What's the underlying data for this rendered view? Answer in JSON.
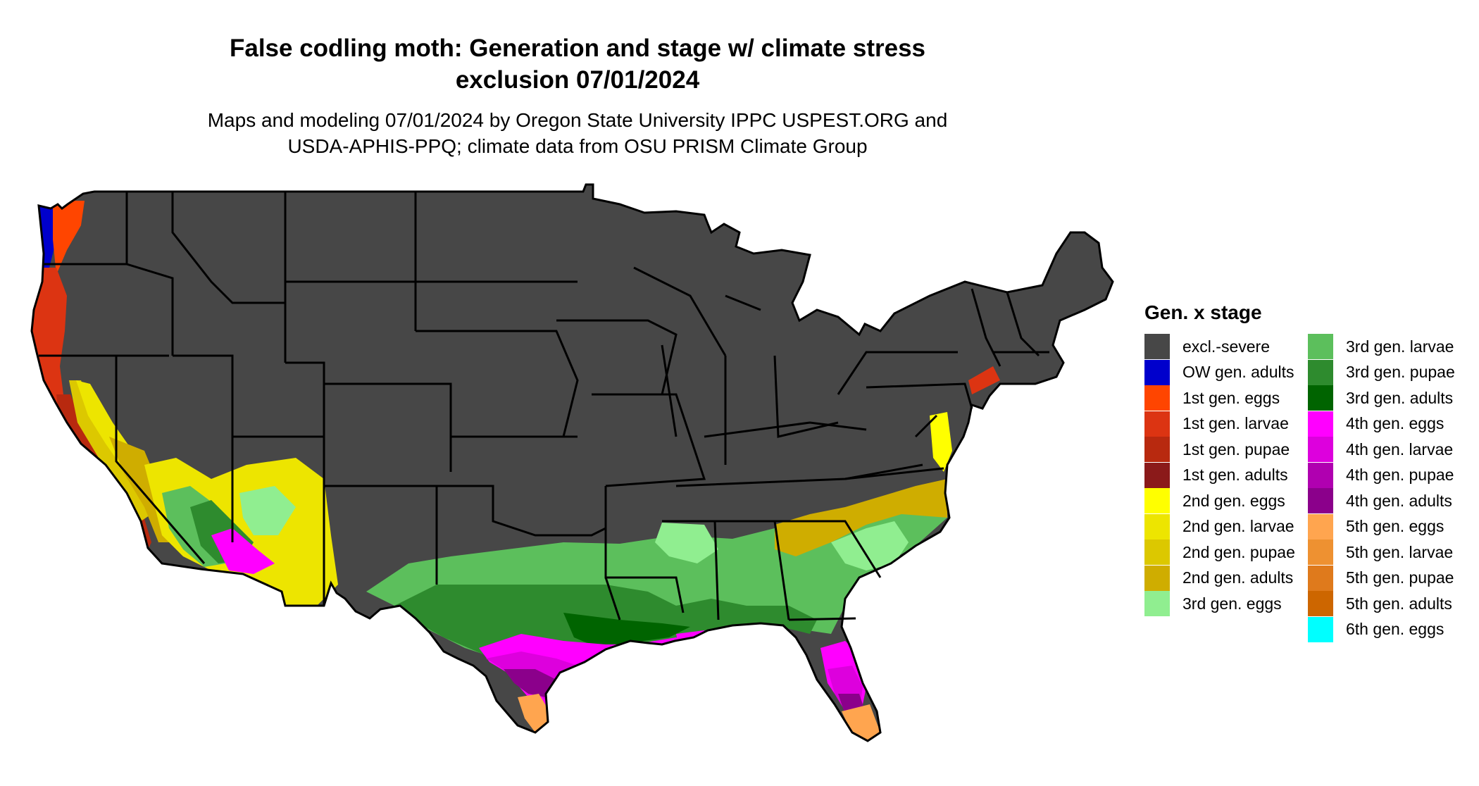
{
  "title": {
    "line1": "False codling moth: Generation and stage w/ climate stress",
    "line2": "exclusion 07/01/2024"
  },
  "subtitle": {
    "line1": "Maps and modeling 07/01/2024 by Oregon State University IPPC USPEST.ORG and",
    "line2": "USDA-APHIS-PPQ; climate data from OSU PRISM Climate Group"
  },
  "legend": {
    "title": "Gen. x stage",
    "items": [
      {
        "label": "excl.-severe",
        "color": "#474747"
      },
      {
        "label": "OW gen. adults",
        "color": "#0000cc"
      },
      {
        "label": "1st gen. eggs",
        "color": "#ff4500"
      },
      {
        "label": "1st gen. larvae",
        "color": "#dc3412"
      },
      {
        "label": "1st gen. pupae",
        "color": "#b8290f"
      },
      {
        "label": "1st gen. adults",
        "color": "#8b1a1a"
      },
      {
        "label": "2nd gen. eggs",
        "color": "#ffff00"
      },
      {
        "label": "2nd gen. larvae",
        "color": "#ede500"
      },
      {
        "label": "2nd gen. pupae",
        "color": "#dcc800"
      },
      {
        "label": "2nd gen. adults",
        "color": "#cfad00"
      },
      {
        "label": "3rd gen. eggs",
        "color": "#90ee90"
      },
      {
        "label": "3rd gen. larvae",
        "color": "#5cbf5c"
      },
      {
        "label": "3rd gen. pupae",
        "color": "#2e8b2e"
      },
      {
        "label": "3rd gen. adults",
        "color": "#006400"
      },
      {
        "label": "4th gen. eggs",
        "color": "#ff00ff"
      },
      {
        "label": "4th gen. larvae",
        "color": "#dd00dd"
      },
      {
        "label": "4th gen. pupae",
        "color": "#b000b0"
      },
      {
        "label": "4th gen. adults",
        "color": "#8b008b"
      },
      {
        "label": "5th gen. eggs",
        "color": "#ffa54f"
      },
      {
        "label": "5th gen. larvae",
        "color": "#ee9131"
      },
      {
        "label": "5th gen. pupae",
        "color": "#df7a1c"
      },
      {
        "label": "5th gen. adults",
        "color": "#cd6600"
      },
      {
        "label": "6th gen. eggs",
        "color": "#00ffff"
      }
    ]
  },
  "colors": {
    "excluded": "#474747",
    "state_border": "#000000",
    "water": "#ffffff"
  }
}
